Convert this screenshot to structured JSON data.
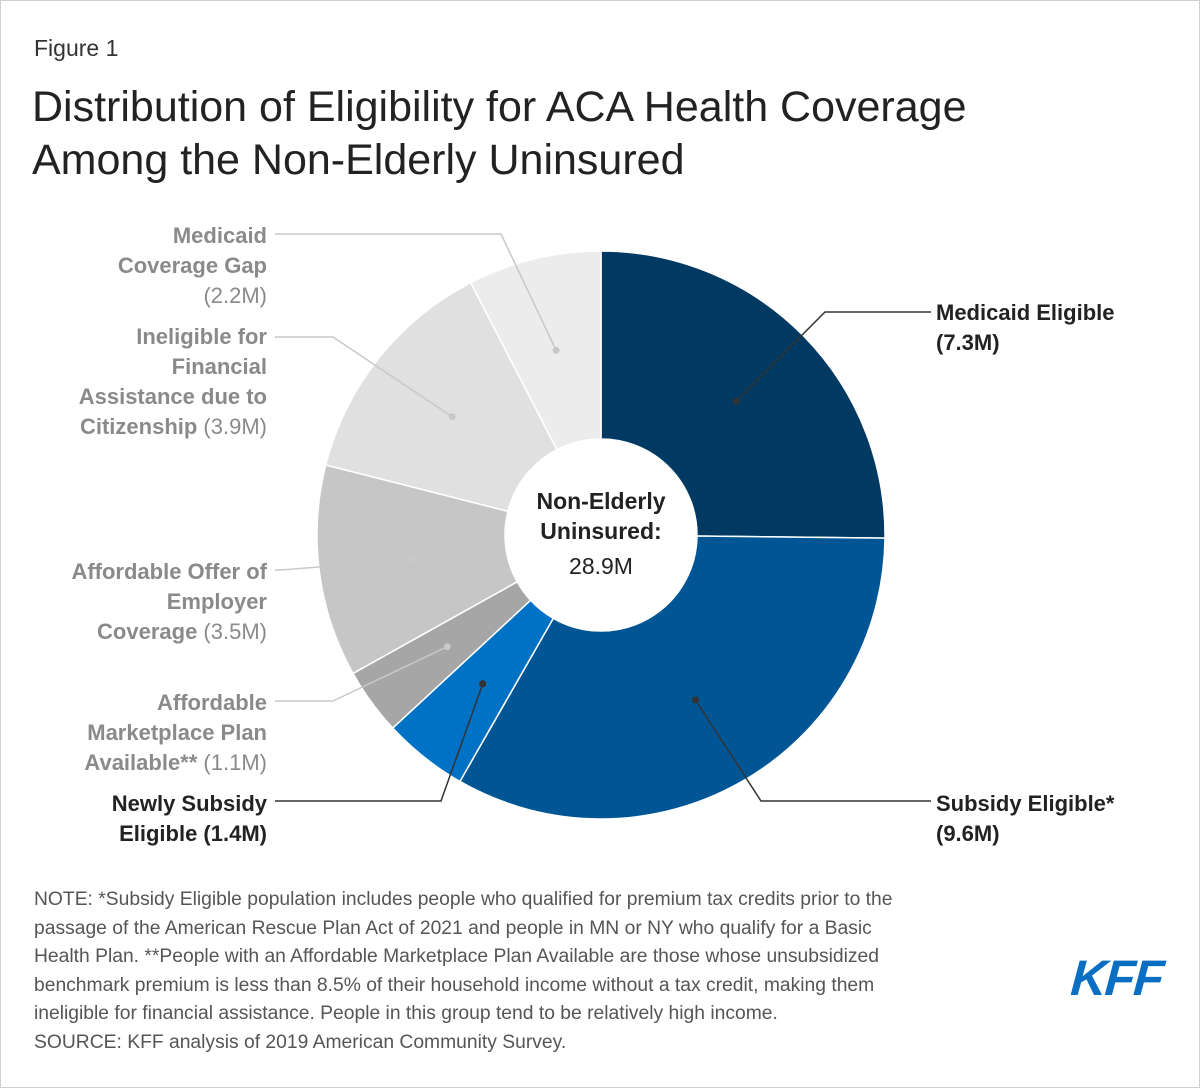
{
  "figure_label": "Figure 1",
  "title_line1": "Distribution of Eligibility for ACA Health Coverage",
  "title_line2": "Among the Non-Elderly Uninsured",
  "chart_data": {
    "type": "pie",
    "subtype": "donut",
    "center_label_line1": "Non-Elderly",
    "center_label_line2": "Uninsured:",
    "center_value": "28.9M",
    "total": 28.9,
    "unit": "M",
    "slices": [
      {
        "key": "medicaid_eligible",
        "label_lines": [
          [
            "Medicaid Eligible",
            ""
          ],
          [
            "(7.3M)",
            ""
          ]
        ],
        "value": 7.3,
        "color": "#003a63",
        "label_color": "#222222",
        "bold_label": true
      },
      {
        "key": "subsidy_eligible",
        "label_lines": [
          [
            "Subsidy Eligible*",
            ""
          ],
          [
            "(9.6M)",
            ""
          ]
        ],
        "value": 9.6,
        "color": "#005595",
        "label_color": "#222222",
        "bold_label": true
      },
      {
        "key": "newly_subsidy_eligible",
        "label_lines": [
          [
            "Newly Subsidy",
            ""
          ],
          [
            "Eligible (1.4M)",
            ""
          ]
        ],
        "value": 1.4,
        "color": "#0072c6",
        "label_color": "#222222",
        "bold_label": true
      },
      {
        "key": "affordable_marketplace",
        "label_lines": [
          [
            "Affordable",
            ""
          ],
          [
            "Marketplace Plan",
            ""
          ],
          [
            "Available**",
            " (1.1M)"
          ]
        ],
        "value": 1.1,
        "color": "#a6a6a6",
        "label_color": "#8a8a8a",
        "bold_label": false
      },
      {
        "key": "affordable_employer",
        "label_lines": [
          [
            "Affordable Offer of",
            ""
          ],
          [
            "Employer",
            ""
          ],
          [
            "Coverage",
            " (3.5M)"
          ]
        ],
        "value": 3.5,
        "color": "#c6c6c6",
        "label_color": "#8a8a8a",
        "bold_label": false
      },
      {
        "key": "citizenship",
        "label_lines": [
          [
            "Ineligible for",
            ""
          ],
          [
            "Financial",
            ""
          ],
          [
            "Assistance due to",
            ""
          ],
          [
            "Citizenship",
            " (3.9M)"
          ]
        ],
        "value": 3.9,
        "color": "#e0e0e0",
        "label_color": "#8a8a8a",
        "bold_label": false
      },
      {
        "key": "coverage_gap",
        "label_lines": [
          [
            "Medicaid",
            ""
          ],
          [
            "Coverage Gap",
            ""
          ],
          [
            "",
            "(2.2M)"
          ]
        ],
        "value": 2.2,
        "color": "#ececec",
        "label_color": "#8a8a8a",
        "bold_label": false
      }
    ]
  },
  "note_lines": [
    "NOTE: *Subsidy Eligible population includes people who qualified for premium tax credits prior to the",
    "passage of the American Rescue Plan Act of 2021 and people in MN or NY who qualify for a Basic",
    "Health Plan. **People with an Affordable Marketplace Plan Available are those whose unsubsidized",
    "benchmark premium is less than 8.5% of their household income without a tax credit, making them",
    "ineligible for financial assistance. People in this group tend to be relatively high income.",
    "SOURCE: KFF analysis of 2019 American Community Survey."
  ],
  "logo_text": "KFF"
}
